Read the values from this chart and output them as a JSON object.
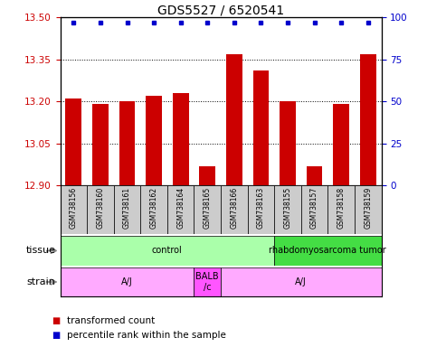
{
  "title": "GDS5527 / 6520541",
  "samples": [
    "GSM738156",
    "GSM738160",
    "GSM738161",
    "GSM738162",
    "GSM738164",
    "GSM738165",
    "GSM738166",
    "GSM738163",
    "GSM738155",
    "GSM738157",
    "GSM738158",
    "GSM738159"
  ],
  "bar_values": [
    13.21,
    13.19,
    13.2,
    13.22,
    13.23,
    12.97,
    13.37,
    13.31,
    13.2,
    12.97,
    13.19,
    13.37
  ],
  "bar_color": "#cc0000",
  "percentile_color": "#0000cc",
  "ylim_left": [
    12.9,
    13.5
  ],
  "ylim_right": [
    0,
    100
  ],
  "yticks_left": [
    12.9,
    13.05,
    13.2,
    13.35,
    13.5
  ],
  "yticks_right": [
    0,
    25,
    50,
    75,
    100
  ],
  "grid_values": [
    13.05,
    13.2,
    13.35
  ],
  "tissue_groups": [
    {
      "label": "control",
      "start": 0,
      "end": 8,
      "color": "#aaffaa"
    },
    {
      "label": "rhabdomyosarcoma tumor",
      "start": 8,
      "end": 12,
      "color": "#44dd44"
    }
  ],
  "strain_groups": [
    {
      "label": "A/J",
      "start": 0,
      "end": 5,
      "color": "#ffaaff"
    },
    {
      "label": "BALB\n/c",
      "start": 5,
      "end": 6,
      "color": "#ff55ff"
    },
    {
      "label": "A/J",
      "start": 6,
      "end": 12,
      "color": "#ffaaff"
    }
  ],
  "tissue_row_label": "tissue",
  "strain_row_label": "strain",
  "legend_items": [
    {
      "label": "transformed count",
      "color": "#cc0000"
    },
    {
      "label": "percentile rank within the sample",
      "color": "#0000cc"
    }
  ],
  "bar_width": 0.6,
  "base_value": 12.9,
  "title_fontsize": 10,
  "tick_fontsize": 7.5,
  "sample_label_fontsize": 5.5,
  "row_label_fontsize": 8,
  "group_label_fontsize": 7,
  "legend_fontsize": 7.5,
  "sample_box_color": "#cccccc",
  "figure_bg": "#ffffff"
}
